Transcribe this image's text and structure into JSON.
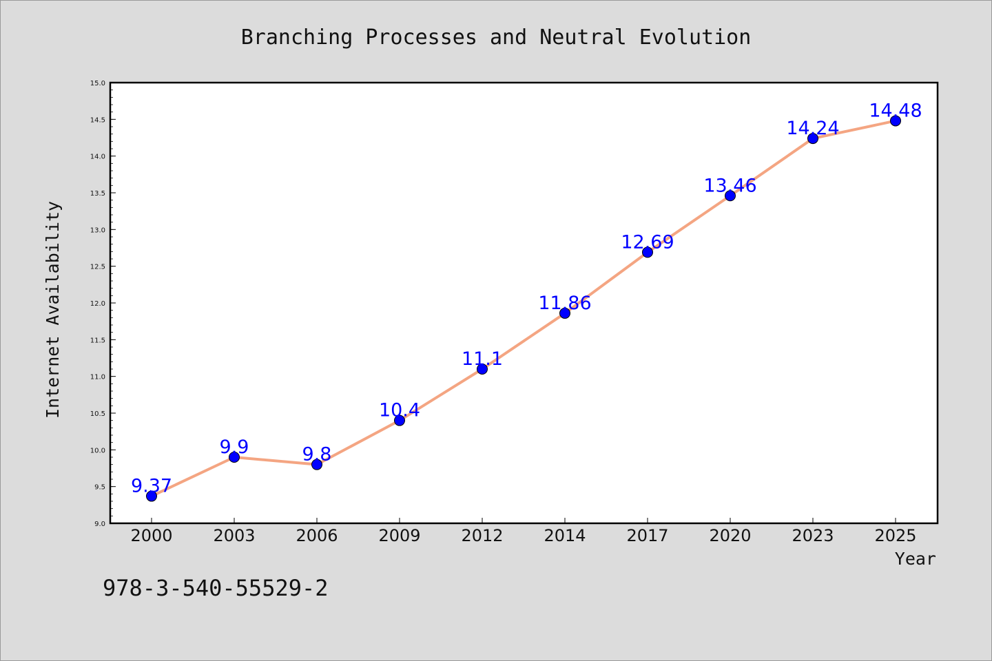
{
  "chart_data": {
    "type": "line",
    "title": "Branching Processes and Neutral Evolution",
    "xlabel": "Year",
    "ylabel": "Internet Availability",
    "categories": [
      "2000",
      "2003",
      "2006",
      "2009",
      "2012",
      "2014",
      "2017",
      "2020",
      "2023",
      "2025"
    ],
    "series": [
      {
        "values": [
          9.37,
          9.9,
          9.8,
          10.4,
          11.1,
          11.86,
          12.69,
          13.46,
          14.24,
          14.48
        ],
        "data_labels": [
          "9.37",
          "9.9",
          "9.8",
          "10.4",
          "11.1",
          "11.86",
          "12.69",
          "13.46",
          "14.24",
          "14.48"
        ],
        "line_color": "#f4a582",
        "marker_color": "#0000ff",
        "label_color": "#0000ff"
      }
    ],
    "ylim": [
      9.0,
      15.0
    ],
    "yticks": [
      "9.0",
      "9.5",
      "10.0",
      "10.5",
      "11.0",
      "11.5",
      "12.0",
      "12.5",
      "13.0",
      "13.5",
      "14.0",
      "14.5",
      "15.0"
    ],
    "grid": false,
    "legend": "none"
  },
  "footer": {
    "isbn": "978-3-540-55529-2"
  },
  "colors": {
    "background": "#dcdcdc",
    "plot_background": "#ffffff",
    "axis": "#000000"
  }
}
